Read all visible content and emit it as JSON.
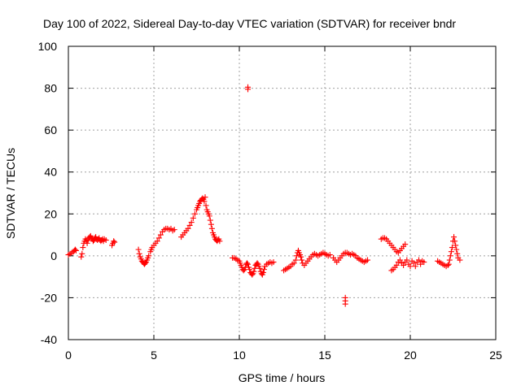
{
  "chart_data": {
    "type": "scatter",
    "title": "Day 100 of 2022, Sidereal Day-to-day VTEC variation (SDTVAR) for receiver bndr",
    "xlabel": "GPS time / hours",
    "ylabel": "SDTVAR / TECUs",
    "xlim": [
      0,
      25
    ],
    "ylim": [
      -40,
      100
    ],
    "xticks": [
      0,
      5,
      10,
      15,
      20,
      25
    ],
    "yticks": [
      -40,
      -20,
      0,
      20,
      40,
      60,
      80,
      100
    ],
    "xtick_labels": [
      "0",
      "5",
      "10",
      "15",
      "20",
      "25"
    ],
    "ytick_labels": [
      "-40",
      "-20",
      "0",
      "20",
      "40",
      "60",
      "80",
      "100"
    ],
    "grid": true,
    "marker": "plus",
    "color": "#ff0000",
    "series": [
      {
        "name": "SDTVAR",
        "x": [
          0.0,
          0.1,
          0.2,
          0.3,
          0.35,
          0.4,
          0.45,
          0.75,
          0.8,
          0.85,
          0.9,
          0.95,
          1.0,
          1.05,
          1.1,
          1.15,
          1.2,
          1.25,
          1.3,
          1.35,
          1.4,
          1.45,
          1.5,
          1.55,
          1.6,
          1.65,
          1.7,
          1.75,
          1.8,
          1.85,
          1.9,
          1.95,
          2.0,
          2.05,
          2.1,
          2.2,
          2.55,
          2.6,
          2.65,
          2.7,
          4.1,
          4.15,
          4.2,
          4.25,
          4.3,
          4.35,
          4.4,
          4.45,
          4.5,
          4.55,
          4.6,
          4.65,
          4.7,
          4.8,
          4.85,
          4.9,
          5.0,
          5.1,
          5.2,
          5.3,
          5.4,
          5.5,
          5.6,
          5.7,
          5.8,
          5.9,
          6.0,
          6.1,
          6.2,
          6.6,
          6.7,
          6.8,
          6.9,
          7.0,
          7.1,
          7.2,
          7.3,
          7.4,
          7.5,
          7.55,
          7.6,
          7.65,
          7.7,
          7.75,
          7.8,
          7.85,
          7.9,
          7.95,
          8.0,
          8.05,
          8.1,
          8.15,
          8.2,
          8.25,
          8.3,
          8.35,
          8.4,
          8.45,
          8.5,
          8.55,
          8.6,
          8.65,
          8.7,
          8.75,
          8.8,
          8.85,
          9.6,
          9.7,
          9.8,
          9.9,
          10.0,
          10.05,
          10.1,
          10.15,
          10.2,
          10.25,
          10.3,
          10.35,
          10.4,
          10.45,
          10.5,
          10.55,
          10.6,
          10.65,
          10.7,
          10.75,
          10.8,
          10.85,
          10.9,
          10.95,
          11.0,
          11.05,
          11.1,
          11.15,
          11.2,
          11.25,
          11.3,
          11.35,
          11.4,
          11.45,
          11.5,
          11.6,
          11.7,
          11.8,
          11.9,
          12.0,
          10.5,
          10.5,
          12.6,
          12.7,
          12.8,
          12.9,
          13.0,
          13.1,
          13.2,
          13.3,
          13.35,
          13.4,
          13.45,
          13.5,
          13.55,
          13.6,
          13.65,
          13.7,
          13.8,
          13.9,
          14.0,
          14.1,
          14.2,
          14.3,
          14.4,
          14.5,
          14.6,
          14.7,
          14.8,
          14.9,
          15.0,
          15.1,
          15.2,
          15.3,
          15.5,
          15.6,
          15.7,
          15.8,
          15.9,
          16.0,
          16.1,
          16.2,
          16.3,
          16.4,
          16.5,
          16.6,
          16.7,
          16.8,
          16.9,
          17.0,
          17.1,
          17.2,
          17.3,
          17.4,
          17.5,
          16.2,
          16.2,
          16.2,
          18.3,
          18.4,
          18.5,
          18.6,
          18.7,
          18.8,
          18.9,
          19.0,
          19.1,
          19.2,
          19.3,
          19.4,
          19.5,
          19.6,
          19.7,
          18.9,
          19.0,
          19.1,
          19.2,
          19.3,
          19.4,
          19.5,
          19.6,
          19.7,
          19.8,
          19.9,
          20.0,
          20.1,
          20.2,
          20.3,
          20.4,
          20.5,
          20.6,
          20.7,
          20.8,
          21.6,
          21.7,
          21.8,
          21.9,
          22.0,
          22.1,
          22.2,
          22.25,
          22.3,
          22.35,
          22.4,
          22.45,
          22.5,
          22.55,
          22.6,
          22.65,
          22.7,
          22.75,
          22.8,
          22.9
        ],
        "y": [
          0.5,
          1.0,
          1.5,
          2.0,
          2.5,
          3.0,
          2.5,
          -0.5,
          1.0,
          4.0,
          6.0,
          7.0,
          8.0,
          7.0,
          6.0,
          7.5,
          8.5,
          9.0,
          9.5,
          8.5,
          8.0,
          7.0,
          7.5,
          8.5,
          9.0,
          8.0,
          7.5,
          8.0,
          8.5,
          7.5,
          7.0,
          7.5,
          8.0,
          7.0,
          8.0,
          7.5,
          5.0,
          6.0,
          7.0,
          6.5,
          3.0,
          1.0,
          -0.5,
          -1.5,
          -2.5,
          -3.0,
          -3.5,
          -4.0,
          -3.5,
          -3.0,
          -2.0,
          -1.0,
          0.0,
          2.0,
          3.0,
          4.0,
          5.0,
          6.0,
          7.0,
          8.5,
          10.0,
          11.5,
          12.5,
          13.0,
          13.0,
          12.5,
          13.0,
          12.0,
          12.5,
          9.0,
          10.0,
          11.0,
          12.0,
          13.0,
          14.5,
          16.0,
          18.0,
          20.0,
          22.0,
          23.0,
          24.0,
          25.0,
          26.0,
          26.5,
          27.0,
          27.5,
          27.0,
          26.0,
          28.0,
          24.0,
          22.0,
          21.0,
          20.0,
          19.0,
          17.0,
          15.0,
          13.0,
          11.0,
          10.0,
          9.0,
          8.0,
          7.5,
          7.0,
          7.5,
          8.0,
          7.0,
          -1.0,
          -1.0,
          -1.5,
          -2.0,
          -2.5,
          -3.5,
          -4.5,
          -5.5,
          -6.5,
          -7.0,
          -6.5,
          -5.5,
          -4.0,
          -3.5,
          -4.0,
          -5.5,
          -6.5,
          -8.0,
          -8.5,
          -9.0,
          -8.5,
          -7.5,
          -6.0,
          -4.5,
          -4.0,
          -3.5,
          -4.0,
          -5.0,
          -6.0,
          -7.5,
          -8.5,
          -9.0,
          -8.0,
          -6.5,
          -5.0,
          -4.0,
          -3.5,
          -3.0,
          -3.5,
          -3.0,
          79.5,
          80.5,
          -7.0,
          -6.5,
          -6.0,
          -5.5,
          -5.0,
          -4.0,
          -3.5,
          -2.0,
          0.0,
          1.5,
          2.5,
          1.5,
          0.5,
          -0.5,
          -2.0,
          -3.5,
          -4.5,
          -3.5,
          -2.5,
          -1.5,
          -0.5,
          0.5,
          1.0,
          0.5,
          0.0,
          0.5,
          1.0,
          1.5,
          1.0,
          0.5,
          0.0,
          0.5,
          -1.0,
          -2.0,
          -3.0,
          -2.0,
          -1.0,
          0.0,
          1.0,
          1.5,
          1.5,
          1.0,
          0.5,
          1.0,
          0.5,
          0.0,
          -1.0,
          -1.5,
          -2.0,
          -2.5,
          -3.0,
          -2.5,
          -2.0,
          -20.0,
          -21.5,
          -23.0,
          8.0,
          8.5,
          8.5,
          8.0,
          7.0,
          6.0,
          5.0,
          4.0,
          3.0,
          2.0,
          1.5,
          2.5,
          3.5,
          4.5,
          5.5,
          -7.0,
          -6.5,
          -5.5,
          -4.5,
          -3.0,
          -2.0,
          -3.5,
          -4.5,
          -3.0,
          -2.0,
          -4.0,
          -5.0,
          -2.5,
          -3.5,
          -5.0,
          -3.0,
          -2.0,
          -4.0,
          -2.5,
          -3.0,
          -2.5,
          -3.0,
          -3.5,
          -4.0,
          -4.5,
          -5.0,
          -4.5,
          -4.0,
          -2.0,
          0.0,
          2.0,
          4.0,
          7.0,
          9.0,
          7.0,
          5.0,
          3.0,
          1.0,
          -1.0,
          -2.0
        ]
      }
    ]
  }
}
